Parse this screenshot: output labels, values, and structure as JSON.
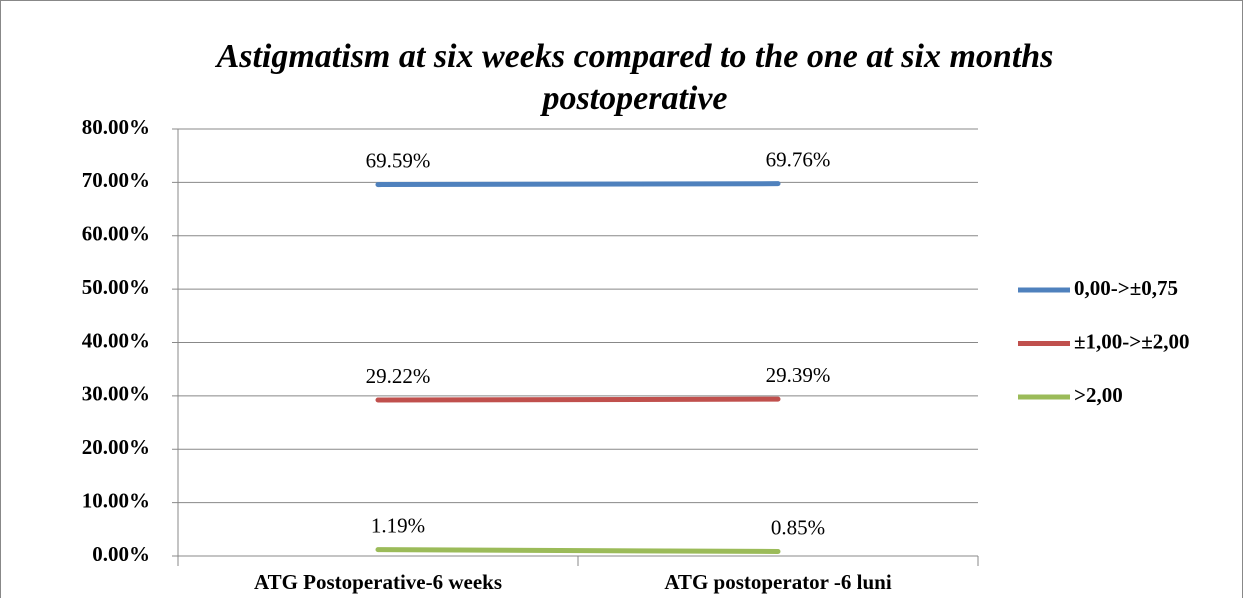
{
  "chart_data": {
    "type": "line",
    "title": "Astigmatism at six weeks compared to the one at six months postoperative",
    "categories": [
      "ATG Postoperative-6 weeks",
      "ATG postoperator -6 luni"
    ],
    "series": [
      {
        "name": "0,00->±0,75",
        "color": "#4f81bd",
        "values": [
          69.59,
          69.76
        ],
        "value_labels": [
          "69.59%",
          "69.76%"
        ]
      },
      {
        "name": "±1,00->±2,00",
        "color": "#c0504d",
        "values": [
          29.22,
          29.39
        ],
        "value_labels": [
          "29.22%",
          "29.39%"
        ]
      },
      {
        "name": ">2,00",
        "color": "#9bbb59",
        "values": [
          1.19,
          0.85
        ],
        "value_labels": [
          "1.19%",
          "0.85%"
        ]
      }
    ],
    "ylim": [
      0,
      80
    ],
    "yticks": [
      {
        "value": 0,
        "label": "0.00%"
      },
      {
        "value": 10,
        "label": "10.00%"
      },
      {
        "value": 20,
        "label": "20.00%"
      },
      {
        "value": 30,
        "label": "30.00%"
      },
      {
        "value": 40,
        "label": "40.00%"
      },
      {
        "value": 50,
        "label": "50.00%"
      },
      {
        "value": 60,
        "label": "60.00%"
      },
      {
        "value": 70,
        "label": "70.00%"
      },
      {
        "value": 80,
        "label": "80.00%"
      }
    ],
    "grid": true,
    "legend": "right"
  }
}
